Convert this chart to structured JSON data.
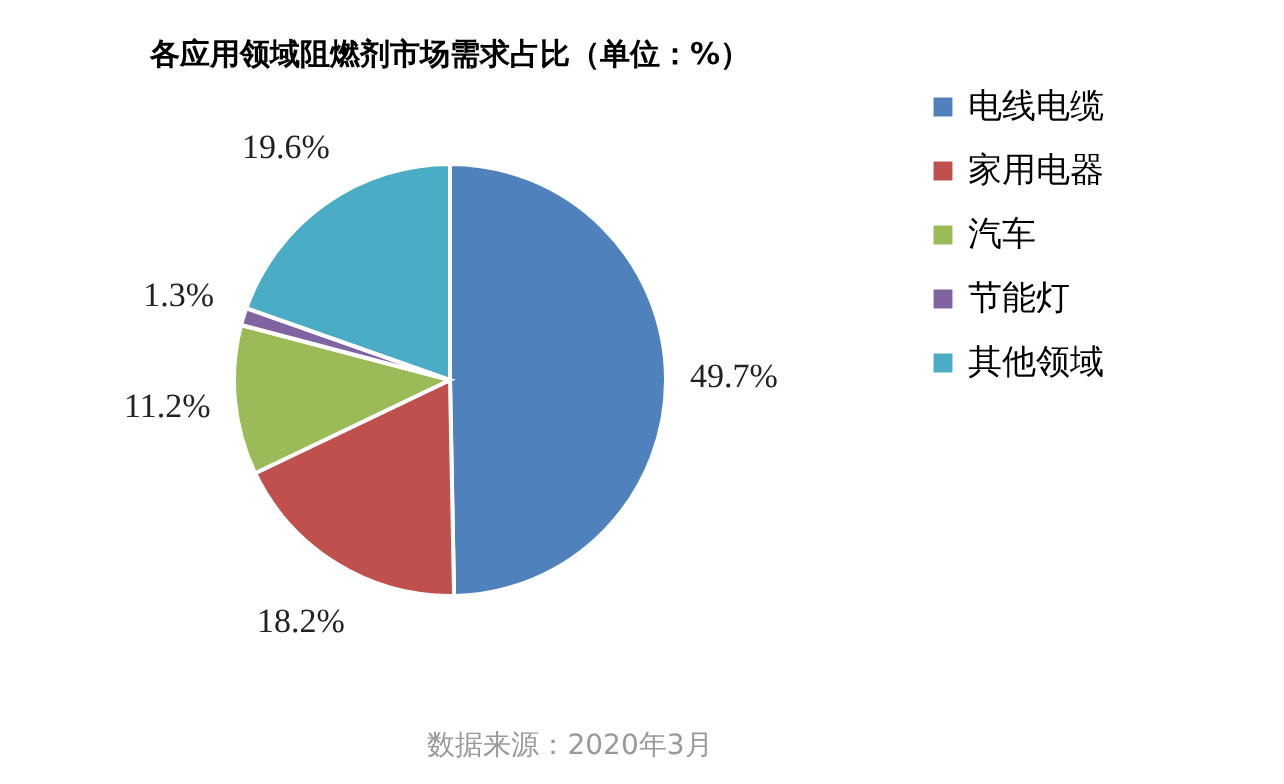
{
  "chart_data": {
    "type": "pie",
    "title": "各应用领域阻燃剂市场需求占比（单位：%）",
    "categories": [
      "电线电缆",
      "家用电器",
      "汽车",
      "节能灯",
      "其他领域"
    ],
    "values": [
      49.7,
      18.2,
      11.2,
      1.3,
      19.6
    ],
    "colors": [
      "#4f81bd",
      "#c0504d",
      "#9bbb59",
      "#8064a2",
      "#4bacc6"
    ],
    "value_labels": [
      "49.7%",
      "18.2%",
      "11.2%",
      "1.3%",
      "19.6%"
    ],
    "legend": "right",
    "annotations": [
      "数据来源：2020年3月"
    ]
  }
}
